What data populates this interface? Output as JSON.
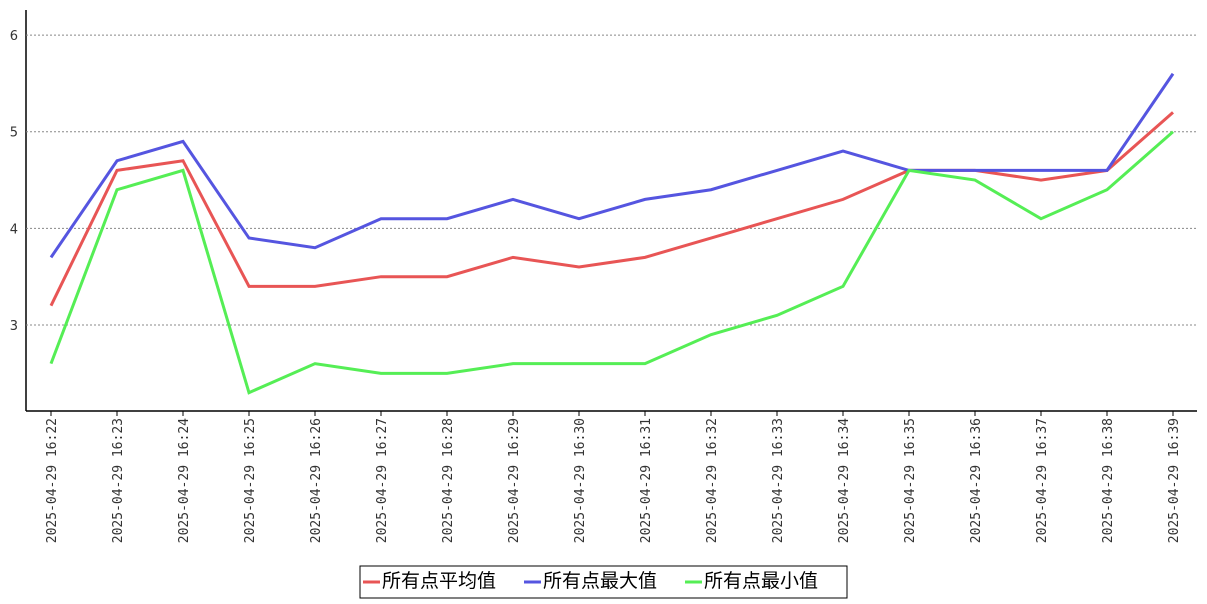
{
  "chart_data": {
    "type": "line",
    "categories": [
      "2025-04-29 16:22",
      "2025-04-29 16:23",
      "2025-04-29 16:24",
      "2025-04-29 16:25",
      "2025-04-29 16:26",
      "2025-04-29 16:27",
      "2025-04-29 16:28",
      "2025-04-29 16:29",
      "2025-04-29 16:30",
      "2025-04-29 16:31",
      "2025-04-29 16:32",
      "2025-04-29 16:33",
      "2025-04-29 16:34",
      "2025-04-29 16:35",
      "2025-04-29 16:36",
      "2025-04-29 16:37",
      "2025-04-29 16:38",
      "2025-04-29 16:39"
    ],
    "series": [
      {
        "name": "所有点平均值",
        "color": "#e85555",
        "values": [
          3.2,
          4.6,
          4.7,
          3.4,
          3.4,
          3.5,
          3.5,
          3.7,
          3.6,
          3.7,
          3.9,
          4.1,
          4.3,
          4.6,
          4.6,
          4.5,
          4.6,
          5.2
        ]
      },
      {
        "name": "所有点最大值",
        "color": "#5555e0",
        "values": [
          3.7,
          4.7,
          4.9,
          3.9,
          3.8,
          4.1,
          4.1,
          4.3,
          4.1,
          4.3,
          4.4,
          4.6,
          4.8,
          4.6,
          4.6,
          4.6,
          4.6,
          5.6
        ]
      },
      {
        "name": "所有点最小值",
        "color": "#55ee55",
        "values": [
          2.6,
          4.4,
          4.6,
          2.3,
          2.6,
          2.5,
          2.5,
          2.6,
          2.6,
          2.6,
          2.9,
          3.1,
          3.4,
          4.6,
          4.5,
          4.1,
          4.4,
          5.0
        ]
      }
    ],
    "ylim": [
      2.11,
      6.26
    ],
    "yticks": [
      3,
      4,
      5,
      6
    ],
    "grid": true
  }
}
